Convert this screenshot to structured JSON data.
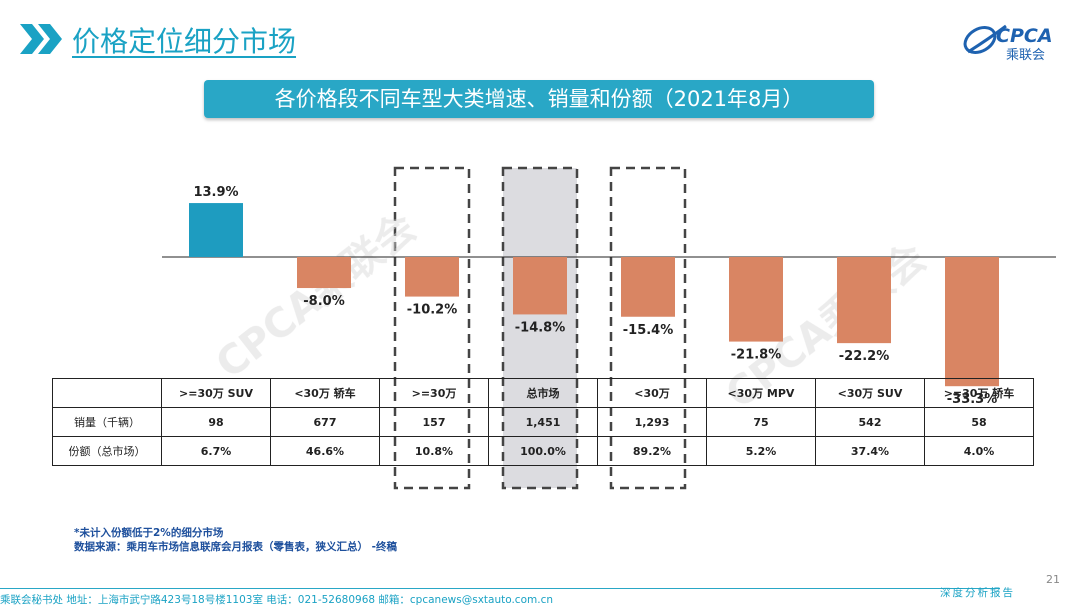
{
  "header": {
    "title": "价格定位细分市场"
  },
  "logo": {
    "text": "CPCA",
    "subtext": "乘联会"
  },
  "subtitle": "各价格段不同车型大类增速、销量和份额（2021年8月）",
  "watermark": "CPCA乘联会",
  "chart_data": {
    "type": "bar",
    "title": "各价格段不同车型大类增速、销量和份额（2021年8月）",
    "categories": [
      ">=30万 SUV",
      "<30万 轿车",
      ">=30万",
      "总市场",
      "<30万",
      "<30万 MPV",
      "<30万 SUV",
      ">=30万 轿车"
    ],
    "values": [
      13.9,
      -8.0,
      -10.2,
      -14.8,
      -15.4,
      -21.8,
      -22.2,
      -33.3
    ],
    "value_labels": [
      "13.9%",
      "-8.0%",
      "-10.2%",
      "-14.8%",
      "-15.4%",
      "-21.8%",
      "-22.2%",
      "-33.3%"
    ],
    "unit": "%",
    "ylim": [
      -35,
      20
    ],
    "colors": {
      "positive": "#1e9cc0",
      "negative": "#d98563"
    },
    "highlighted_categories": [
      2,
      3,
      4
    ],
    "xlabel": "",
    "ylabel": ""
  },
  "table": {
    "rows": [
      {
        "label": "销量（千辆）",
        "values": [
          "98",
          "677",
          "157",
          "1,451",
          "1,293",
          "75",
          "542",
          "58"
        ]
      },
      {
        "label": "份额（总市场）",
        "values": [
          "6.7%",
          "46.6%",
          "10.8%",
          "100.0%",
          "89.2%",
          "5.2%",
          "37.4%",
          "4.0%"
        ]
      }
    ]
  },
  "notes": [
    "*未计入份额低于2%的细分市场",
    "数据来源：乘用车市场信息联席会月报表（零售表，狭义汇总） -终稿"
  ],
  "page_number": "21",
  "footer": {
    "text": "乘联会秘书处   地址：上海市武宁路423号18号楼1103室  电话：021-52680968   邮箱：cpcanews@sxtauto.com.cn",
    "report_tag": "深度分析报告"
  }
}
